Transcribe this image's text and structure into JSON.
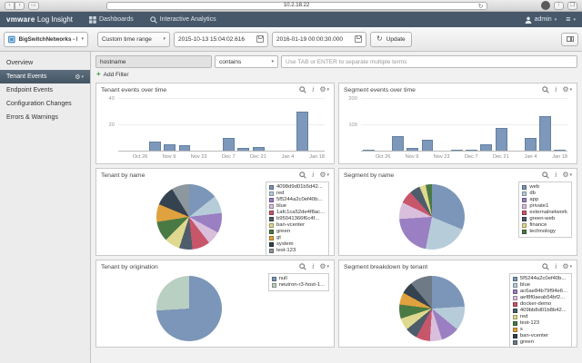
{
  "browser": {
    "url": "10.2.18.22"
  },
  "header": {
    "brand_bold": "vmware",
    "brand_rest": "Log Insight",
    "nav_dashboards": "Dashboards",
    "nav_interactive_analytics": "Interactive Analytics",
    "user": "admin"
  },
  "toolbar": {
    "dashboard_selector": "BigSwitchNetworks - BCF",
    "time_range": "Custom time range",
    "start_time": "2015-10-13 15:04:02.616",
    "end_time": "2016-01-19 00:00:30.000",
    "update_label": "Update"
  },
  "sidebar": {
    "items": [
      {
        "label": "Overview"
      },
      {
        "label": "Tenant Events"
      },
      {
        "label": "Endpoint Events"
      },
      {
        "label": "Configuration Changes"
      },
      {
        "label": "Errors & Warnings"
      }
    ]
  },
  "filter": {
    "field": "hostname",
    "operator": "contains",
    "placeholder": "Use TAB or ENTER to separate multiple terms",
    "add_filter": "Add Filter"
  },
  "chart_data": [
    {
      "id": "tenant_events_over_time",
      "type": "bar",
      "title": "Tenant events over time",
      "x": [
        "Oct 19",
        "Oct 26",
        "Nov 2",
        "Nov 9",
        "Nov 16",
        "Nov 23",
        "Nov 30",
        "Dec 7",
        "Dec 14",
        "Dec 21",
        "Dec 28",
        "Jan 4",
        "Jan 11",
        "Jan 18"
      ],
      "values": [
        0,
        0,
        7,
        5,
        4,
        0,
        0,
        10,
        2,
        3,
        0,
        0,
        30,
        0
      ],
      "labels": [
        "",
        "Oct 26",
        "",
        "Nov 9",
        "",
        "Nov 23",
        "",
        "Dec 7",
        "",
        "Dec 21",
        "",
        "Jan 4",
        "",
        "Jan 18"
      ],
      "ylim": [
        0,
        40
      ],
      "yticks": [
        20,
        40
      ],
      "bar_color": "#7d98ba",
      "grid": true,
      "legend_position": "none"
    },
    {
      "id": "segment_events_over_time",
      "type": "bar",
      "title": "Segment events over time",
      "x": [
        "Oct 19",
        "Oct 26",
        "Nov 2",
        "Nov 9",
        "Nov 16",
        "Nov 23",
        "Nov 30",
        "Dec 7",
        "Dec 14",
        "Dec 21",
        "Dec 28",
        "Jan 4",
        "Jan 11",
        "Jan 18"
      ],
      "values": [
        4,
        0,
        55,
        9,
        42,
        0,
        3,
        4,
        25,
        88,
        0,
        48,
        135,
        3
      ],
      "labels": [
        "",
        "Oct 26",
        "",
        "Nov 9",
        "",
        "Nov 23",
        "",
        "Dec 7",
        "",
        "Dec 21",
        "",
        "Jan 4",
        "",
        "Jan 18"
      ],
      "ylim": [
        0,
        200
      ],
      "yticks": [
        100,
        200
      ],
      "bar_color": "#7d98ba",
      "grid": true,
      "legend_position": "none"
    },
    {
      "id": "tenant_by_name",
      "type": "pie",
      "title": "Tenant by name",
      "legend_position": "right",
      "slices": [
        {
          "label": "4098d9d01b5d42...",
          "value": 13,
          "color": "#7b96b8"
        },
        {
          "label": "red",
          "value": 8,
          "color": "#b7ccd9"
        },
        {
          "label": "5f5244a2c0ef40b...",
          "value": 9,
          "color": "#9a7fc3"
        },
        {
          "label": "blue",
          "value": 6,
          "color": "#d9bfdc"
        },
        {
          "label": "1afc1ca52de4f8ac...",
          "value": 8,
          "color": "#c8566b"
        },
        {
          "label": "b95041366f6c4f...",
          "value": 6,
          "color": "#4e5d6b"
        },
        {
          "label": "ban-vcenter",
          "value": 7,
          "color": "#ded98e"
        },
        {
          "label": "green",
          "value": 9,
          "color": "#4a7a44"
        },
        {
          "label": "gt",
          "value": 8,
          "color": "#e0a23e"
        },
        {
          "label": "system",
          "value": 9,
          "color": "#35424f"
        },
        {
          "label": "test-123",
          "value": 8,
          "color": "#8d979e"
        }
      ]
    },
    {
      "id": "segment_by_name",
      "type": "pie",
      "title": "Segment by name",
      "legend_position": "right",
      "slices": [
        {
          "label": "web",
          "value": 30,
          "color": "#7b96b8"
        },
        {
          "label": "db",
          "value": 21,
          "color": "#b7ccd9"
        },
        {
          "label": "app",
          "value": 20,
          "color": "#9a7fc3"
        },
        {
          "label": "private1",
          "value": 8,
          "color": "#d9bfdc"
        },
        {
          "label": "externalnetwork",
          "value": 6,
          "color": "#c8566b"
        },
        {
          "label": "green-web",
          "value": 5,
          "color": "#4e5d6b"
        },
        {
          "label": "finance",
          "value": 3,
          "color": "#ded98e"
        },
        {
          "label": "technology",
          "value": 3,
          "color": "#4a7a44"
        }
      ]
    },
    {
      "id": "tenant_by_origination",
      "type": "pie",
      "title": "Tenant by origination",
      "legend_position": "right",
      "slices": [
        {
          "label": "null",
          "value": 74,
          "color": "#7b96b8"
        },
        {
          "label": "neutron-r3-host-1...",
          "value": 26,
          "color": "#b9cfc2"
        }
      ]
    },
    {
      "id": "segment_breakdown_by_tenant",
      "type": "pie",
      "title": "Segment breakdown by tenant",
      "legend_position": "right",
      "slices": [
        {
          "label": "5f5244a2c0ef40b...",
          "value": 24,
          "color": "#7b96b8"
        },
        {
          "label": "blue",
          "value": 12,
          "color": "#b7ccd9"
        },
        {
          "label": "ac6ae84b79f94e6...",
          "value": 9,
          "color": "#9a7fc3"
        },
        {
          "label": "aef8f0aeab54bf2...",
          "value": 6,
          "color": "#d9bfdc"
        },
        {
          "label": "docker-demo",
          "value": 7,
          "color": "#c8566b"
        },
        {
          "label": "409bb8d01b8b42...",
          "value": 6,
          "color": "#4e5d6b"
        },
        {
          "label": "red",
          "value": 6,
          "color": "#ded98e"
        },
        {
          "label": "test-123",
          "value": 7,
          "color": "#4a7a44"
        },
        {
          "label": "s",
          "value": 6,
          "color": "#e0a23e"
        },
        {
          "label": "ban-vcenter",
          "value": 6,
          "color": "#35424f"
        },
        {
          "label": "green",
          "value": 11,
          "color": "#6e7a85"
        }
      ]
    }
  ]
}
